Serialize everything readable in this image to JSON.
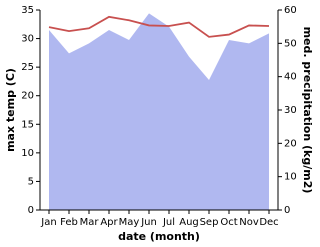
{
  "chart_data": {
    "type": "line",
    "x_label": "date (month)",
    "y_label": "max temp (C)",
    "y2_label": "med. precipitation (kg/m2)",
    "categories": [
      "Jan",
      "Feb",
      "Mar",
      "Apr",
      "May",
      "Jun",
      "Jul",
      "Aug",
      "Sep",
      "Oct",
      "Nov",
      "Dec"
    ],
    "ylim": [
      0,
      35
    ],
    "yticks": [
      0,
      5,
      10,
      15,
      20,
      25,
      30,
      35
    ],
    "y2lim": [
      0,
      60
    ],
    "y2ticks": [
      0,
      10,
      20,
      30,
      40,
      50,
      60
    ],
    "series": [
      {
        "name": "med. precipitation",
        "type": "area",
        "axis": "y2",
        "color": "#b0b8f0",
        "values": [
          54,
          47,
          50,
          54,
          51,
          59,
          55,
          46,
          39,
          51,
          50,
          53
        ]
      },
      {
        "name": "max temp",
        "type": "line",
        "color": "#c8504f",
        "values": [
          32.0,
          31.3,
          31.8,
          33.8,
          33.2,
          32.3,
          32.2,
          32.8,
          30.3,
          30.7,
          32.3,
          32.2
        ]
      }
    ]
  }
}
